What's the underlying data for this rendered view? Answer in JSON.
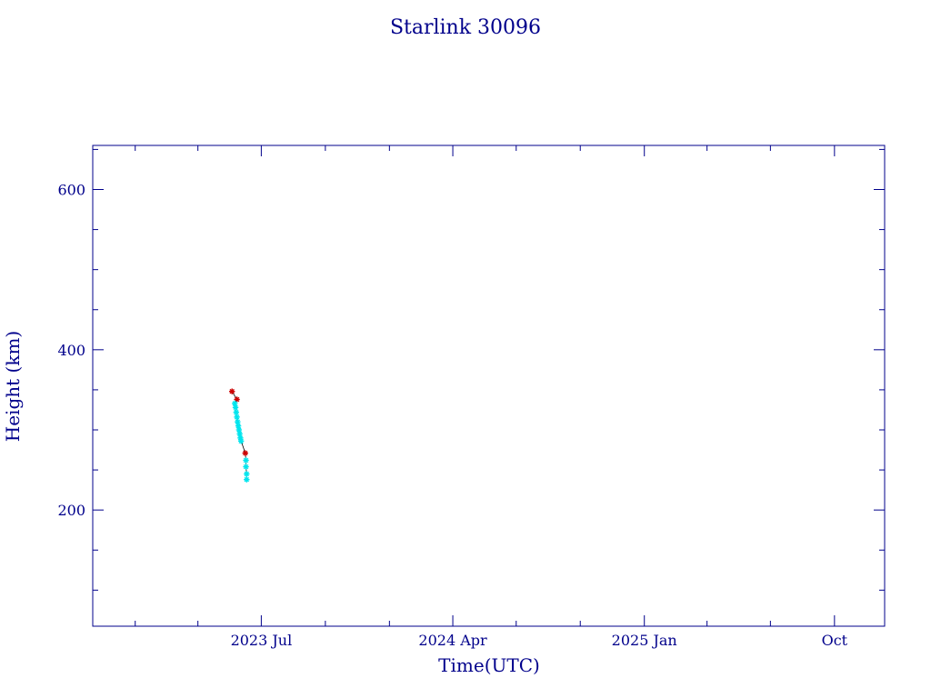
{
  "chart_data": {
    "type": "scatter",
    "title": "Starlink 30096",
    "xlabel": "Time(UTC)",
    "ylabel": "Height (km)",
    "x_type": "date",
    "xlim": [
      "2022-11-01",
      "2025-12-12"
    ],
    "ylim": [
      55,
      655
    ],
    "x_ticks": [
      {
        "date": "2023-07-01",
        "label": "2023 Jul"
      },
      {
        "date": "2024-04-01",
        "label": "2024 Apr"
      },
      {
        "date": "2025-01-01",
        "label": "2025 Jan"
      },
      {
        "date": "2025-10-01",
        "label": "Oct"
      }
    ],
    "y_ticks": [
      {
        "value": 200,
        "label": "200"
      },
      {
        "value": 400,
        "label": "400"
      },
      {
        "value": 600,
        "label": "600"
      }
    ],
    "grid": false,
    "colors": {
      "axis": "#00008b",
      "series_red": "#cc0000",
      "series_cyan": "#00e5ee",
      "line": "#000000"
    },
    "series": [
      {
        "color": "#cc0000",
        "marker": "star",
        "points": [
          {
            "x": "2023-05-20",
            "y": 348
          },
          {
            "x": "2023-05-27",
            "y": 338
          },
          {
            "x": "2023-06-08",
            "y": 271
          }
        ]
      },
      {
        "color": "#00e5ee",
        "marker": "star",
        "points": [
          {
            "x": "2023-05-24",
            "y": 333
          },
          {
            "x": "2023-05-25",
            "y": 328
          },
          {
            "x": "2023-05-26",
            "y": 322
          },
          {
            "x": "2023-05-27",
            "y": 316
          },
          {
            "x": "2023-05-28",
            "y": 310
          },
          {
            "x": "2023-05-29",
            "y": 305
          },
          {
            "x": "2023-05-30",
            "y": 300
          },
          {
            "x": "2023-05-31",
            "y": 295
          },
          {
            "x": "2023-06-01",
            "y": 290
          },
          {
            "x": "2023-06-02",
            "y": 286
          },
          {
            "x": "2023-06-09",
            "y": 262
          },
          {
            "x": "2023-06-09",
            "y": 254
          },
          {
            "x": "2023-06-10",
            "y": 245
          },
          {
            "x": "2023-06-10",
            "y": 238
          }
        ]
      }
    ]
  }
}
